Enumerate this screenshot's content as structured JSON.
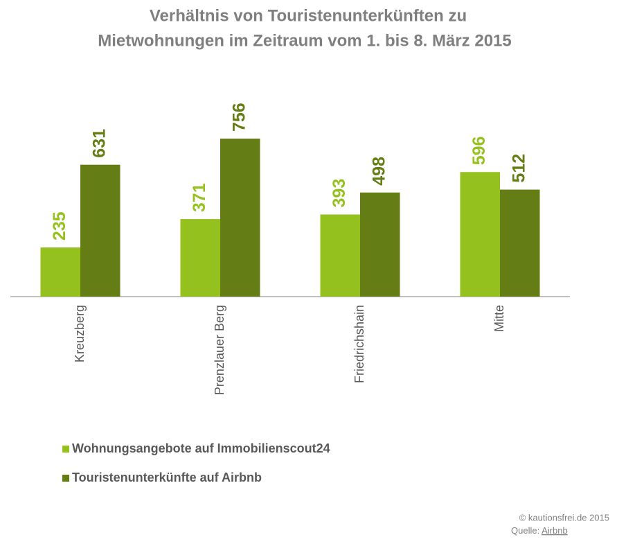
{
  "chart_data": {
    "type": "bar",
    "title": [
      "Verhältnis von Touristenunterkünften zu",
      "Mietwohnungen im Zeitraum vom 1. bis 8. März 2015"
    ],
    "categories": [
      "Kreuzberg",
      "Prenzlauer Berg",
      "Friedrichshain",
      "Mitte"
    ],
    "series": [
      {
        "name": "Wohnungsangebote auf Immobilienscout24",
        "color": "#95c11f",
        "values": [
          235,
          371,
          393,
          596
        ]
      },
      {
        "name": "Touristenunterkünfte auf Airbnb",
        "color": "#647d14",
        "values": [
          631,
          756,
          498,
          512
        ]
      }
    ],
    "footer": [
      "© kautionsfrei.de 2015",
      "Quelle: ",
      "Airbnb"
    ]
  }
}
